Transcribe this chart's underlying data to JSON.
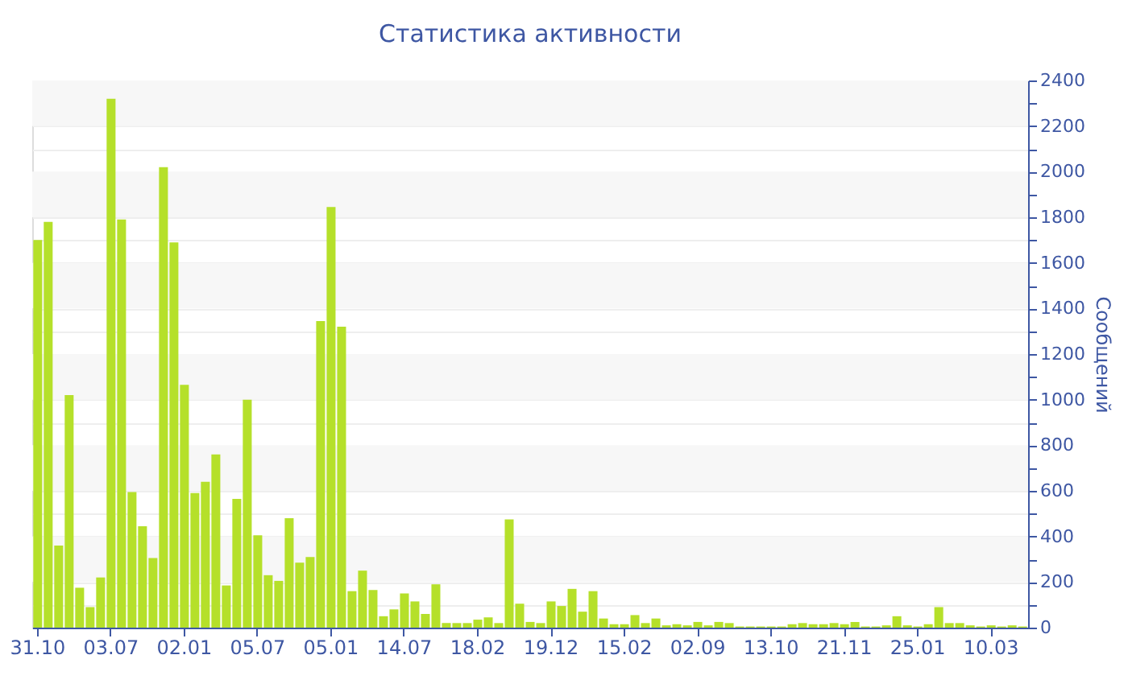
{
  "chart_data": {
    "type": "bar",
    "title": "Статистика активности",
    "ylabel": "Сообщений",
    "categories": [
      "31.10",
      null,
      null,
      null,
      null,
      null,
      null,
      "03.07",
      null,
      null,
      null,
      null,
      null,
      null,
      "02.01",
      null,
      null,
      null,
      null,
      null,
      null,
      "05.07",
      null,
      null,
      null,
      null,
      null,
      null,
      "05.01",
      null,
      null,
      null,
      null,
      null,
      null,
      "14.07",
      null,
      null,
      null,
      null,
      null,
      null,
      "18.02",
      null,
      null,
      null,
      null,
      null,
      null,
      "19.12",
      null,
      null,
      null,
      null,
      null,
      null,
      "15.02",
      null,
      null,
      null,
      null,
      null,
      null,
      "02.09",
      null,
      null,
      null,
      null,
      null,
      null,
      "13.10",
      null,
      null,
      null,
      null,
      null,
      null,
      "21.11",
      null,
      null,
      null,
      null,
      null,
      null,
      "25.01",
      null,
      null,
      null,
      null,
      null,
      null,
      "10.03",
      null,
      null,
      null
    ],
    "values": [
      1700,
      1780,
      360,
      1020,
      175,
      90,
      220,
      2320,
      1790,
      595,
      445,
      305,
      2020,
      1690,
      1065,
      590,
      640,
      760,
      185,
      565,
      1000,
      405,
      230,
      205,
      480,
      285,
      310,
      1345,
      1845,
      1320,
      160,
      250,
      165,
      50,
      80,
      150,
      115,
      60,
      190,
      20,
      20,
      20,
      35,
      45,
      20,
      475,
      105,
      25,
      20,
      115,
      95,
      170,
      70,
      160,
      40,
      15,
      15,
      55,
      20,
      40,
      10,
      15,
      10,
      25,
      10,
      25,
      20,
      5,
      5,
      5,
      5,
      5,
      15,
      20,
      15,
      15,
      20,
      15,
      25,
      5,
      5,
      10,
      50,
      10,
      5,
      15,
      90,
      20,
      20,
      10,
      5,
      10,
      5,
      10,
      5
    ],
    "color": "#b5e02a",
    "ylim": [
      0,
      2400
    ],
    "yticks": [
      0,
      {
        "value": 100,
        "label": null
      },
      200,
      {
        "value": 300,
        "label": null
      },
      400,
      {
        "value": 500,
        "label": null
      },
      600,
      {
        "value": 700,
        "label": null
      },
      800,
      {
        "value": 900,
        "label": null
      },
      1000,
      {
        "value": 1100,
        "label": null
      },
      1200,
      {
        "value": 1300,
        "label": null
      },
      1400,
      {
        "value": 1500,
        "label": null
      },
      1600,
      {
        "value": 1700,
        "label": null
      },
      1800,
      {
        "value": 1900,
        "label": null
      },
      2000,
      {
        "value": 2100,
        "label": null
      },
      2200,
      {
        "value": 2300,
        "label": null
      },
      2400
    ],
    "grid": "y"
  }
}
